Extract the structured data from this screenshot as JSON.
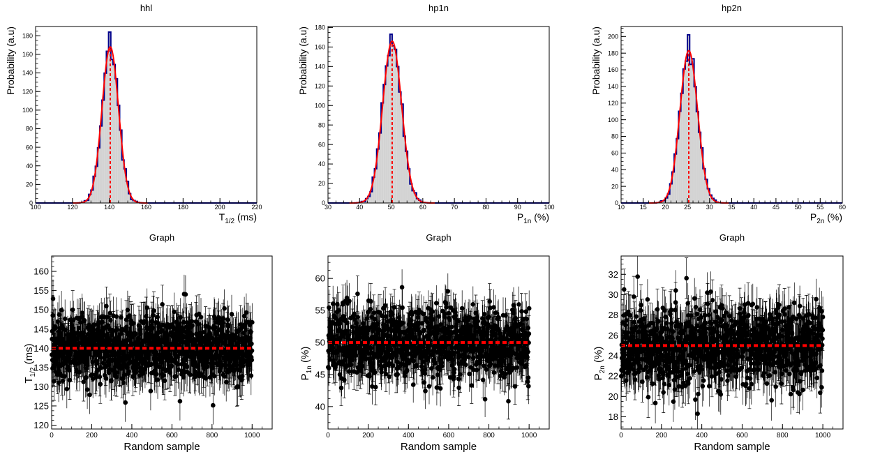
{
  "colors": {
    "hist_fill": "#d3d3d3",
    "hist_outline": "#00008b",
    "fit_line": "#ff0000",
    "marker": "#000000",
    "mean_line": "#ff0000"
  },
  "chart_data": [
    {
      "type": "histogram",
      "title": "hhl",
      "xlabel": "T",
      "xlabel_sub": "1/2",
      "xlabel_tail": " (ms)",
      "ylabel": "Probability (a.u)",
      "xlim": [
        100,
        220
      ],
      "ylim": [
        0,
        190
      ],
      "xticks": [
        100,
        120,
        140,
        160,
        180,
        200,
        220
      ],
      "yticks": [
        0,
        20,
        40,
        60,
        80,
        100,
        120,
        140,
        160,
        180
      ],
      "fit": {
        "mean": 140.5,
        "sigma": 4.5,
        "amplitude": 168
      },
      "peak_value": 184,
      "mean_line": 140.5
    },
    {
      "type": "histogram",
      "title": "hp1n",
      "xlabel": "P",
      "xlabel_sub": "1n",
      "xlabel_tail": " (%)",
      "ylabel": "Probability (a.u)",
      "xlim": [
        30,
        100
      ],
      "ylim": [
        0,
        181
      ],
      "xticks": [
        30,
        40,
        50,
        60,
        70,
        80,
        90,
        100
      ],
      "yticks": [
        0,
        20,
        40,
        60,
        80,
        100,
        120,
        140,
        160,
        180
      ],
      "fit": {
        "mean": 50.3,
        "sigma": 3.0,
        "amplitude": 166
      },
      "peak_value": 173,
      "mean_line": 50.3
    },
    {
      "type": "histogram",
      "title": "hp2n",
      "xlabel": "P",
      "xlabel_sub": "2n",
      "xlabel_tail": " (%)",
      "ylabel": "Probability (a.u)",
      "xlim": [
        10,
        60
      ],
      "ylim": [
        0,
        212
      ],
      "xticks": [
        10,
        15,
        20,
        25,
        30,
        35,
        40,
        45,
        50,
        55,
        60
      ],
      "yticks": [
        0,
        20,
        40,
        60,
        80,
        100,
        120,
        140,
        160,
        180,
        200
      ],
      "fit": {
        "mean": 25.3,
        "sigma": 2.0,
        "amplitude": 183
      },
      "peak_value": 202,
      "mean_line": 25.3
    },
    {
      "type": "scatter",
      "title": "Graph",
      "xlabel": "Random sample",
      "ylabel": "T",
      "ylabel_sub": "1/2",
      "ylabel_tail": " (ms)",
      "xlim": [
        0,
        1100
      ],
      "ylim": [
        119,
        164
      ],
      "xticks": [
        0,
        200,
        400,
        600,
        800,
        1000
      ],
      "yticks": [
        120,
        125,
        130,
        135,
        140,
        145,
        150,
        155,
        160
      ],
      "center": 140,
      "spread": 4.5,
      "error": 5,
      "n_points": 1000,
      "mean_line": 140
    },
    {
      "type": "scatter",
      "title": "Graph",
      "xlabel": "Random sample",
      "ylabel": "P",
      "ylabel_sub": "1n",
      "ylabel_tail": " (%)",
      "xlim": [
        0,
        1100
      ],
      "ylim": [
        36.5,
        63.5
      ],
      "xticks": [
        0,
        200,
        400,
        600,
        800,
        1000
      ],
      "yticks": [
        40,
        45,
        50,
        55,
        60
      ],
      "center": 50,
      "spread": 2.9,
      "error": 2.8,
      "n_points": 1000,
      "mean_line": 50
    },
    {
      "type": "scatter",
      "title": "Graph",
      "xlabel": "Random sample",
      "ylabel": "P",
      "ylabel_sub": "2n",
      "ylabel_tail": " (%)",
      "xlim": [
        0,
        1100
      ],
      "ylim": [
        16.8,
        33.8
      ],
      "xticks": [
        0,
        200,
        400,
        600,
        800,
        1000
      ],
      "yticks": [
        18,
        20,
        22,
        24,
        26,
        28,
        30,
        32
      ],
      "center": 25,
      "spread": 2.0,
      "error": 2.0,
      "n_points": 1000,
      "mean_line": 25
    }
  ]
}
